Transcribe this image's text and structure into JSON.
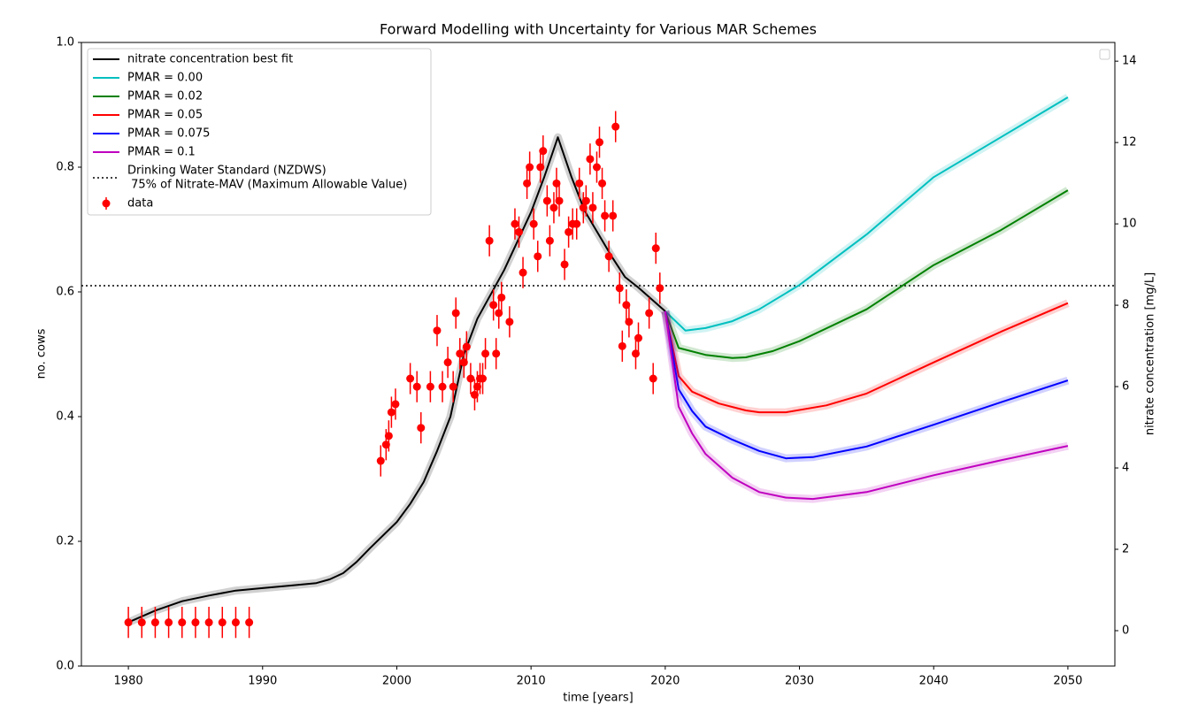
{
  "chart_data": {
    "type": "line",
    "title": "Forward Modelling with Uncertainty for Various MAR Schemes",
    "xlabel": "time [years]",
    "ylabel": "no. cows",
    "y2label": "nitrate concentration [mg/L]",
    "xlim": [
      1976.5,
      2053.5
    ],
    "xticks": [
      1980,
      1990,
      2000,
      2010,
      2020,
      2030,
      2040,
      2050
    ],
    "ylim": [
      0,
      1
    ],
    "yticks": [
      {
        "value": 0,
        "label": "0.0"
      },
      0.2,
      0.4,
      0.6,
      0.8,
      {
        "value": 1,
        "label": "1.0"
      }
    ],
    "y2lim": [
      -0.87,
      14.46
    ],
    "y2ticks": [
      0,
      2,
      4,
      6,
      8,
      10,
      12,
      14
    ],
    "legend": "upper left",
    "series": [
      {
        "name": "nitrate concentration best fit",
        "color": "#000000",
        "x": [
          1980,
          1982,
          1984,
          1986,
          1988,
          1990,
          1992,
          1994,
          1995,
          1996,
          1997,
          1998,
          2000,
          2001,
          2002,
          2003,
          2004,
          2005,
          2006,
          2008,
          2010,
          2011,
          2012,
          2013,
          2014,
          2016,
          2017,
          2018,
          2020
        ],
        "values": [
          0.07,
          0.089,
          0.104,
          0.113,
          0.121,
          0.125,
          0.129,
          0.133,
          0.139,
          0.149,
          0.167,
          0.189,
          0.231,
          0.26,
          0.295,
          0.345,
          0.4,
          0.5,
          0.557,
          0.635,
          0.728,
          0.785,
          0.848,
          0.785,
          0.73,
          0.657,
          0.624,
          0.607,
          0.569
        ]
      },
      {
        "name": "PMAR = 0.00",
        "color": "#00bfbf",
        "x": [
          2020,
          2021.5,
          2023,
          2025,
          2027,
          2030,
          2035,
          2040,
          2045,
          2050
        ],
        "values": [
          0.569,
          0.538,
          0.542,
          0.553,
          0.572,
          0.611,
          0.692,
          0.784,
          0.848,
          0.912
        ]
      },
      {
        "name": "PMAR = 0.02",
        "color": "#008000",
        "x": [
          2020,
          2021,
          2023,
          2025,
          2026,
          2028,
          2030,
          2035,
          2040,
          2045,
          2050
        ],
        "values": [
          0.569,
          0.51,
          0.499,
          0.494,
          0.495,
          0.505,
          0.521,
          0.572,
          0.643,
          0.699,
          0.763
        ]
      },
      {
        "name": "PMAR = 0.05",
        "color": "#ff0000",
        "x": [
          2020,
          2021,
          2022,
          2024,
          2026,
          2027,
          2029,
          2032,
          2035,
          2040,
          2045,
          2050
        ],
        "values": [
          0.569,
          0.465,
          0.44,
          0.421,
          0.41,
          0.407,
          0.407,
          0.418,
          0.437,
          0.487,
          0.536,
          0.582
        ]
      },
      {
        "name": "PMAR = 0.075",
        "color": "#0000ff",
        "x": [
          2020,
          2021,
          2022,
          2023,
          2025,
          2027,
          2029,
          2031,
          2035,
          2040,
          2045,
          2050
        ],
        "values": [
          0.569,
          0.444,
          0.409,
          0.384,
          0.363,
          0.345,
          0.333,
          0.335,
          0.352,
          0.387,
          0.423,
          0.458
        ]
      },
      {
        "name": "PMAR = 0.1",
        "color": "#bf00bf",
        "x": [
          2020,
          2021,
          2022,
          2023,
          2025,
          2027,
          2029,
          2031,
          2035,
          2040,
          2045,
          2050
        ],
        "values": [
          0.569,
          0.416,
          0.373,
          0.34,
          0.302,
          0.279,
          0.27,
          0.268,
          0.279,
          0.306,
          0.33,
          0.353
        ]
      }
    ],
    "hline": {
      "name": [
        "Drinking Water Standard (NZDWS)",
        " 75% of Nitrate-MAV (Maximum Allowable Value)"
      ],
      "y": 0.61,
      "color": "#000000"
    },
    "data": {
      "name": "data",
      "color": "#ff0000",
      "yerr": 0.025,
      "x": [
        1980,
        1981,
        1982,
        1983,
        1984,
        1985,
        1986,
        1987,
        1988,
        1989,
        1998.8,
        1999.2,
        1999.4,
        1999.6,
        1999.9,
        2001,
        2001.5,
        2001.8,
        2002.5,
        2003,
        2003.4,
        2003.8,
        2004.2,
        2004.4,
        2004.7,
        2005,
        2005.2,
        2005.5,
        2005.8,
        2006,
        2006.2,
        2006.4,
        2006.6,
        2006.9,
        2007.2,
        2007.4,
        2007.6,
        2007.8,
        2008.4,
        2008.8,
        2009.1,
        2009.4,
        2009.7,
        2009.9,
        2010.2,
        2010.5,
        2010.7,
        2010.9,
        2011.2,
        2011.4,
        2011.7,
        2011.9,
        2012.1,
        2012.5,
        2012.8,
        2013.1,
        2013.4,
        2013.6,
        2013.9,
        2014.1,
        2014.4,
        2014.6,
        2014.9,
        2015.1,
        2015.3,
        2015.5,
        2015.8,
        2016.1,
        2016.3,
        2016.6,
        2016.8,
        2017.1,
        2017.3,
        2017.8,
        2018,
        2018.8,
        2019.1,
        2019.3,
        2019.6
      ],
      "values": [
        0.07,
        0.07,
        0.07,
        0.07,
        0.07,
        0.07,
        0.07,
        0.07,
        0.07,
        0.07,
        0.329,
        0.355,
        0.369,
        0.407,
        0.42,
        0.461,
        0.448,
        0.382,
        0.448,
        0.538,
        0.448,
        0.487,
        0.448,
        0.566,
        0.501,
        0.487,
        0.512,
        0.461,
        0.435,
        0.448,
        0.461,
        0.461,
        0.501,
        0.682,
        0.579,
        0.501,
        0.566,
        0.591,
        0.552,
        0.709,
        0.696,
        0.631,
        0.774,
        0.8,
        0.709,
        0.657,
        0.8,
        0.826,
        0.746,
        0.682,
        0.735,
        0.774,
        0.746,
        0.644,
        0.696,
        0.709,
        0.709,
        0.774,
        0.735,
        0.746,
        0.813,
        0.735,
        0.8,
        0.84,
        0.774,
        0.722,
        0.657,
        0.722,
        0.865,
        0.606,
        0.513,
        0.579,
        0.552,
        0.501,
        0.526,
        0.566,
        0.461,
        0.67,
        0.606
      ]
    }
  }
}
